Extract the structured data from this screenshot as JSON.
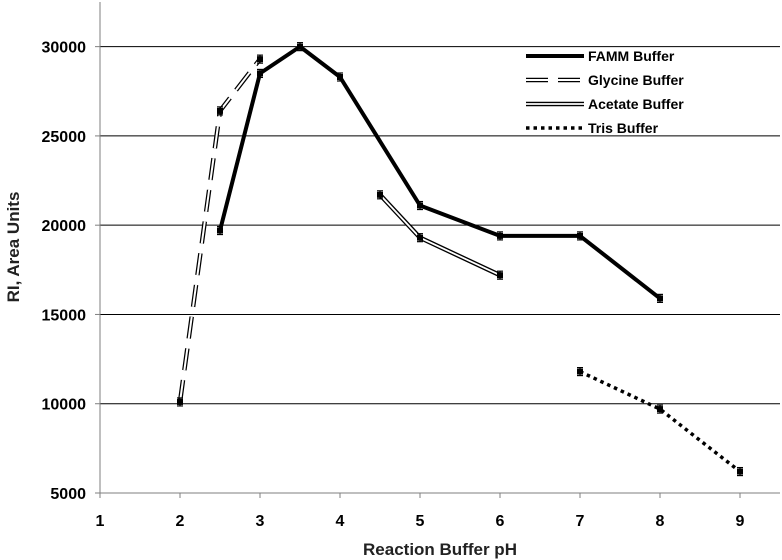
{
  "chart_data": {
    "type": "line",
    "title": "",
    "xlabel": "Reaction Buffer pH",
    "ylabel": "RI, Area Units",
    "xlim": [
      1,
      9.5
    ],
    "ylim": [
      5000,
      32500
    ],
    "xticks": [
      1,
      2,
      3,
      4,
      5,
      6,
      7,
      8,
      9
    ],
    "yticks": [
      5000,
      10000,
      15000,
      20000,
      25000,
      30000
    ],
    "xtick_labels": [
      "1",
      "2",
      "3",
      "4",
      "5",
      "6",
      "7",
      "8",
      "9"
    ],
    "ytick_labels": [
      "5000",
      "10000",
      "15000",
      "20000",
      "25000",
      "30000"
    ],
    "grid": "horizontal",
    "legend_position": "top-right",
    "series": [
      {
        "name": "FAMM Buffer",
        "style": "thick-solid",
        "color": "#000000",
        "x": [
          2.5,
          3.0,
          3.5,
          4.0,
          5.0,
          6.0,
          7.0,
          8.0
        ],
        "y": [
          19700,
          28500,
          30000,
          28300,
          21100,
          19400,
          19400,
          15900
        ]
      },
      {
        "name": "Glycine Buffer",
        "style": "long-dash-outlined",
        "color": "#000000",
        "x": [
          2.0,
          2.5,
          3.0
        ],
        "y": [
          10100,
          26400,
          29300
        ]
      },
      {
        "name": "Acetate Buffer",
        "style": "double-line",
        "color": "#000000",
        "x": [
          4.5,
          5.0,
          6.0
        ],
        "y": [
          21700,
          19300,
          17200
        ]
      },
      {
        "name": "Tris Buffer",
        "style": "dotted",
        "color": "#000000",
        "x": [
          7.0,
          8.0,
          9.0
        ],
        "y": [
          11800,
          9700,
          6200
        ]
      }
    ]
  }
}
